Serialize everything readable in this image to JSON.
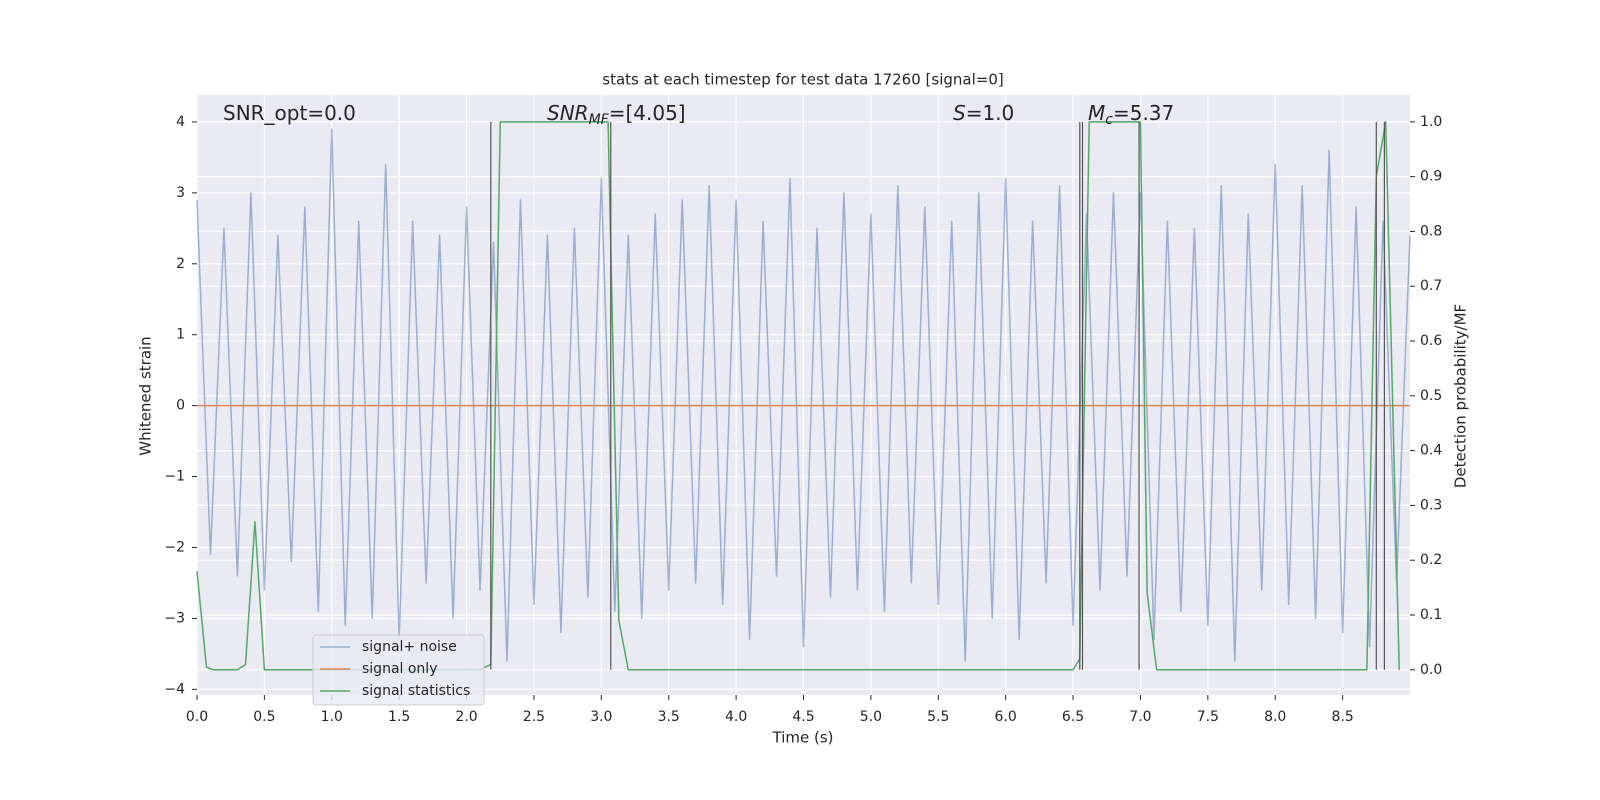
{
  "chart_data": {
    "type": "line",
    "title": "stats at each timestep for test data 17260 [signal=0]",
    "xlabel": "Time (s)",
    "ylabel": "Whitened strain",
    "y2label": "Detection probability/MF",
    "xlim": [
      0,
      9.0
    ],
    "ylim": [
      -4.08,
      4.38
    ],
    "y2lim": [
      -0.046,
      1.049
    ],
    "xticks": [
      {
        "value": 0,
        "label": "0.0"
      },
      0.5,
      {
        "value": 1,
        "label": "1.0"
      },
      1.5,
      {
        "value": 2,
        "label": "2.0"
      },
      2.5,
      {
        "value": 3,
        "label": "3.0"
      },
      3.5,
      {
        "value": 4,
        "label": "4.0"
      },
      4.5,
      {
        "value": 5,
        "label": "5.0"
      },
      5.5,
      {
        "value": 6,
        "label": "6.0"
      },
      6.5,
      {
        "value": 7,
        "label": "7.0"
      },
      7.5,
      {
        "value": 8,
        "label": "8.0"
      },
      8.5
    ],
    "yticks": [
      {
        "value": -4,
        "label": "−4"
      },
      {
        "value": -3,
        "label": "−3"
      },
      {
        "value": -2,
        "label": "−2"
      },
      {
        "value": -1,
        "label": "−1"
      },
      0,
      1,
      2,
      3,
      4
    ],
    "y2ticks": [
      {
        "value": 0,
        "label": "0.0"
      },
      0.1,
      0.2,
      0.3,
      0.4,
      0.5,
      0.6,
      0.7,
      0.8,
      0.9,
      {
        "value": 1,
        "label": "1.0"
      }
    ],
    "grid": true,
    "legend": "lower left",
    "series": [
      {
        "name": "signal+ noise",
        "color": "#4c72b0",
        "alpha": 0.5,
        "x": [
          0,
          0.1,
          0.2,
          0.3,
          0.4,
          0.5,
          0.6,
          0.7,
          0.8,
          0.9,
          1,
          1.1,
          1.2,
          1.3,
          1.4,
          1.5,
          1.6,
          1.7,
          1.8,
          1.9,
          2,
          2.1,
          2.2,
          2.3,
          2.4,
          2.5,
          2.6,
          2.7,
          2.8,
          2.9,
          3,
          3.1,
          3.2,
          3.3,
          3.4,
          3.5,
          3.6,
          3.7,
          3.8,
          3.9,
          4,
          4.1,
          4.2,
          4.3,
          4.4,
          4.5,
          4.6,
          4.7,
          4.8,
          4.9,
          5,
          5.1,
          5.2,
          5.3,
          5.4,
          5.5,
          5.6,
          5.7,
          5.8,
          5.9,
          6,
          6.1,
          6.2,
          6.3,
          6.4,
          6.5,
          6.6,
          6.7,
          6.8,
          6.9,
          7,
          7.1,
          7.2,
          7.3,
          7.4,
          7.5,
          7.6,
          7.7,
          7.8,
          7.9,
          8,
          8.1,
          8.2,
          8.3,
          8.4,
          8.5,
          8.6,
          8.7,
          8.8,
          8.9,
          9
        ],
        "values": [
          2.9,
          -2.1,
          2.5,
          -2.4,
          3.0,
          -2.6,
          2.4,
          -2.2,
          2.8,
          -2.9,
          3.9,
          -3.1,
          2.6,
          -3.0,
          3.4,
          -3.3,
          2.6,
          -2.5,
          2.4,
          -3.0,
          2.8,
          -2.6,
          2.3,
          -3.6,
          2.9,
          -2.8,
          2.4,
          -3.2,
          2.5,
          -2.7,
          3.2,
          -2.9,
          2.4,
          -3.0,
          2.7,
          -2.6,
          2.9,
          -2.5,
          3.1,
          -2.8,
          2.9,
          -3.3,
          2.6,
          -2.4,
          3.2,
          -3.4,
          2.5,
          -2.7,
          3.0,
          -2.6,
          2.7,
          -2.9,
          3.1,
          -2.5,
          2.8,
          -2.8,
          2.6,
          -3.6,
          3.0,
          -3.0,
          3.2,
          -3.3,
          2.6,
          -2.5,
          3.1,
          -3.1,
          2.7,
          -2.6,
          3.0,
          -2.4,
          3.0,
          -3.3,
          2.6,
          -2.9,
          2.5,
          -3.1,
          3.1,
          -3.6,
          2.7,
          -2.6,
          3.4,
          -2.8,
          3.1,
          -3.0,
          3.6,
          -3.2,
          2.8,
          -3.4,
          2.6,
          -2.5,
          2.4
        ]
      },
      {
        "name": "signal only",
        "color": "#dd8452",
        "x": [
          0,
          9.0
        ],
        "values": [
          0,
          0
        ]
      },
      {
        "name": "signal statistics",
        "color": "#55a868",
        "axis": "y2",
        "x": [
          0,
          0.07,
          0.12,
          0.2,
          0.3,
          0.36,
          0.43,
          0.5,
          0.6,
          2.1,
          2.18,
          2.25,
          3.05,
          3.13,
          3.2,
          6.5,
          6.55,
          6.62,
          7.0,
          7.05,
          7.12,
          8.68,
          8.75,
          8.82,
          8.92
        ],
        "values": [
          0.18,
          0.005,
          0,
          0,
          0,
          0.01,
          0.27,
          0,
          0,
          0,
          0.01,
          1.0,
          1.0,
          0.09,
          0,
          0,
          0.02,
          1.0,
          1.0,
          0.14,
          0,
          0,
          0.9,
          1.0,
          0
        ]
      }
    ],
    "vlines": {
      "x": [
        2.18,
        3.07,
        6.55,
        6.57,
        6.99,
        8.75,
        8.81
      ],
      "ymin": 0,
      "ymax": 1,
      "axis": "y2",
      "color": "#555555"
    },
    "annotations": [
      {
        "text": "SNR_opt=0.0"
      },
      {
        "text": "SNR",
        "sub": "MF",
        "rest": "=[4.05]",
        "italic": true
      },
      {
        "text": "S",
        "rest": "=1.0",
        "italic": true
      },
      {
        "text": "M",
        "sub": "c",
        "rest": "=5.37",
        "italic": true
      }
    ]
  }
}
